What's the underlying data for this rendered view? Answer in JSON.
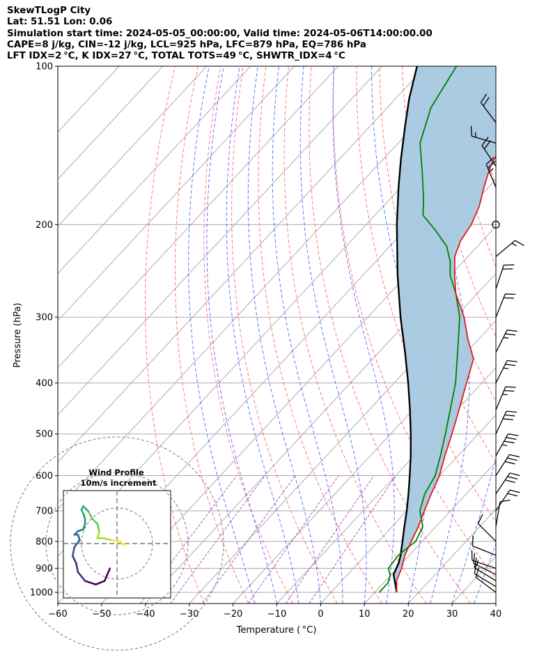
{
  "header": {
    "line1": "SkewTLogP City",
    "line2": "Lat: 51.51   Lon: 0.06",
    "line3": "Simulation start time: 2024-05-05_00:00:00, Valid time: 2024-05-06T14:00:00.00",
    "line4": "CAPE=8 j/kg, CIN=-12 j/kg, LCL=925 hPa, LFC=879 hPa, EQ=786 hPa",
    "line5": "LFT IDX=2 °C, K IDX=27 °C, TOTAL TOTS=49 °C, SHWTR_IDX=4 °C"
  },
  "chart_data": {
    "type": "line",
    "diagram": "skew-T log-P",
    "xlabel": "Temperature ( °C)",
    "ylabel": "Pressure (hPa)",
    "xlim": [
      -60,
      40
    ],
    "ylim": [
      1050,
      100
    ],
    "y_scale": "log",
    "x_ticks": [
      -60,
      -50,
      -40,
      -30,
      -20,
      -10,
      0,
      10,
      20,
      30,
      40
    ],
    "x_tick_labels": [
      "−60",
      "−50",
      "−40",
      "−30",
      "−20",
      "−10",
      "0",
      "10",
      "20",
      "30",
      "40"
    ],
    "y_ticks": [
      1000,
      900,
      800,
      700,
      600,
      500,
      400,
      300,
      200,
      100
    ],
    "grid": true,
    "colors": {
      "temperature": "#e31a1c",
      "dewpoint": "#008000",
      "parcel": "#000000",
      "cape_fill": "#a6c8e0",
      "dry_adiabat": "#ff6060",
      "moist_adiabat": "#4a5bff",
      "mixing_ratio": "#9a40c0",
      "isotherm": "#aaaaaa"
    },
    "series": [
      {
        "key": "temperature",
        "points": [
          [
            1000,
            15.0
          ],
          [
            950,
            12.5
          ],
          [
            900,
            11.0
          ],
          [
            850,
            9.0
          ],
          [
            800,
            7.5
          ],
          [
            750,
            6.0
          ],
          [
            700,
            4.0
          ],
          [
            650,
            2.0
          ],
          [
            600,
            0.0
          ],
          [
            550,
            -3.0
          ],
          [
            500,
            -6.0
          ],
          [
            450,
            -9.5
          ],
          [
            400,
            -13.5
          ],
          [
            360,
            -17.0
          ],
          [
            330,
            -22.5
          ],
          [
            300,
            -28.0
          ],
          [
            270,
            -35.0
          ],
          [
            250,
            -39.0
          ],
          [
            230,
            -43.0
          ],
          [
            215,
            -45.0
          ],
          [
            200,
            -46.0
          ],
          [
            185,
            -48.0
          ],
          [
            170,
            -51.0
          ],
          [
            155,
            -54.0
          ],
          [
            140,
            -56.0
          ],
          [
            125,
            -57.0
          ],
          [
            110,
            -57.0
          ],
          [
            100,
            -57.0
          ]
        ]
      },
      {
        "key": "dewpoint",
        "points": [
          [
            1000,
            11.0
          ],
          [
            960,
            11.0
          ],
          [
            930,
            10.0
          ],
          [
            900,
            8.0
          ],
          [
            850,
            7.5
          ],
          [
            800,
            8.5
          ],
          [
            750,
            7.0
          ],
          [
            700,
            3.0
          ],
          [
            650,
            0.5
          ],
          [
            600,
            -1.0
          ],
          [
            550,
            -4.0
          ],
          [
            500,
            -7.5
          ],
          [
            450,
            -11.5
          ],
          [
            400,
            -16.0
          ],
          [
            350,
            -22.0
          ],
          [
            300,
            -29.0
          ],
          [
            270,
            -35.0
          ],
          [
            250,
            -40.0
          ],
          [
            235,
            -43.0
          ],
          [
            220,
            -47.0
          ],
          [
            205,
            -53.0
          ],
          [
            192,
            -59.0
          ],
          [
            180,
            -62.0
          ],
          [
            160,
            -68.0
          ],
          [
            140,
            -75.0
          ],
          [
            120,
            -80.0
          ],
          [
            100,
            -83.0
          ]
        ]
      },
      {
        "key": "parcel",
        "points": [
          [
            1000,
            15.0
          ],
          [
            925,
            10.5
          ],
          [
            879,
            9.2
          ],
          [
            850,
            8.0
          ],
          [
            800,
            5.5
          ],
          [
            750,
            2.8
          ],
          [
            700,
            0.0
          ],
          [
            650,
            -3.2
          ],
          [
            600,
            -6.8
          ],
          [
            550,
            -10.8
          ],
          [
            500,
            -15.4
          ],
          [
            450,
            -20.7
          ],
          [
            400,
            -26.8
          ],
          [
            350,
            -34.0
          ],
          [
            300,
            -42.5
          ],
          [
            250,
            -52.0
          ],
          [
            200,
            -63.0
          ],
          [
            170,
            -70.5
          ],
          [
            150,
            -76.0
          ],
          [
            130,
            -82.0
          ],
          [
            115,
            -87.0
          ],
          [
            100,
            -92.0
          ]
        ]
      }
    ],
    "hodograph": {
      "title": "Wind Profile",
      "subtitle": "10m/s increment",
      "ring_increment_ms": 10,
      "colormap": "viridis",
      "points_uv": [
        [
          -2.0,
          -7.0
        ],
        [
          -3.5,
          -10.5
        ],
        [
          -6.0,
          -11.5
        ],
        [
          -9.0,
          -10.5
        ],
        [
          -11.0,
          -8.0
        ],
        [
          -11.5,
          -5.5
        ],
        [
          -12.5,
          -3.5
        ],
        [
          -12.0,
          -1.0
        ],
        [
          -10.5,
          1.0
        ],
        [
          -11.0,
          2.5
        ],
        [
          -12.0,
          2.5
        ],
        [
          -11.0,
          3.5
        ],
        [
          -9.5,
          4.0
        ],
        [
          -9.0,
          5.5
        ],
        [
          -9.0,
          7.0
        ],
        [
          -9.5,
          8.5
        ],
        [
          -10.0,
          9.5
        ],
        [
          -9.5,
          10.5
        ],
        [
          -8.0,
          9.0
        ],
        [
          -7.0,
          7.0
        ],
        [
          -5.5,
          5.5
        ],
        [
          -5.0,
          3.5
        ],
        [
          -5.5,
          1.5
        ],
        [
          -4.0,
          1.5
        ],
        [
          -1.5,
          1.0
        ],
        [
          1.0,
          0.5
        ],
        [
          2.0,
          -0.5
        ]
      ]
    },
    "wind_barbs": [
      {
        "p": 1000,
        "u": -4,
        "v": 3
      },
      {
        "p": 975,
        "u": -5,
        "v": 3
      },
      {
        "p": 950,
        "u": -5,
        "v": 3
      },
      {
        "p": 925,
        "u": -6,
        "v": 3
      },
      {
        "p": 900,
        "u": -6,
        "v": 2
      },
      {
        "p": 850,
        "u": -5,
        "v": 2
      },
      {
        "p": 800,
        "u": -3,
        "v": 3
      },
      {
        "p": 750,
        "u": 1,
        "v": 6
      },
      {
        "p": 700,
        "u": 6,
        "v": 9
      },
      {
        "p": 650,
        "u": 8,
        "v": 12
      },
      {
        "p": 600,
        "u": 9,
        "v": 14
      },
      {
        "p": 550,
        "u": 9,
        "v": 16
      },
      {
        "p": 500,
        "u": 6,
        "v": 13
      },
      {
        "p": 450,
        "u": 5,
        "v": 12
      },
      {
        "p": 400,
        "u": 6,
        "v": 12
      },
      {
        "p": 350,
        "u": 6,
        "v": 12
      },
      {
        "p": 300,
        "u": 4,
        "v": 10
      },
      {
        "p": 265,
        "u": 3,
        "v": 9
      },
      {
        "p": 230,
        "u": 6,
        "v": 5
      },
      {
        "p": 200,
        "u": 0,
        "v": 0
      },
      {
        "p": 170,
        "u": -5,
        "v": 12
      },
      {
        "p": 155,
        "u": -6,
        "v": 9
      },
      {
        "p": 140,
        "u": -7,
        "v": 2
      },
      {
        "p": 128,
        "u": -6,
        "v": 8
      }
    ]
  }
}
